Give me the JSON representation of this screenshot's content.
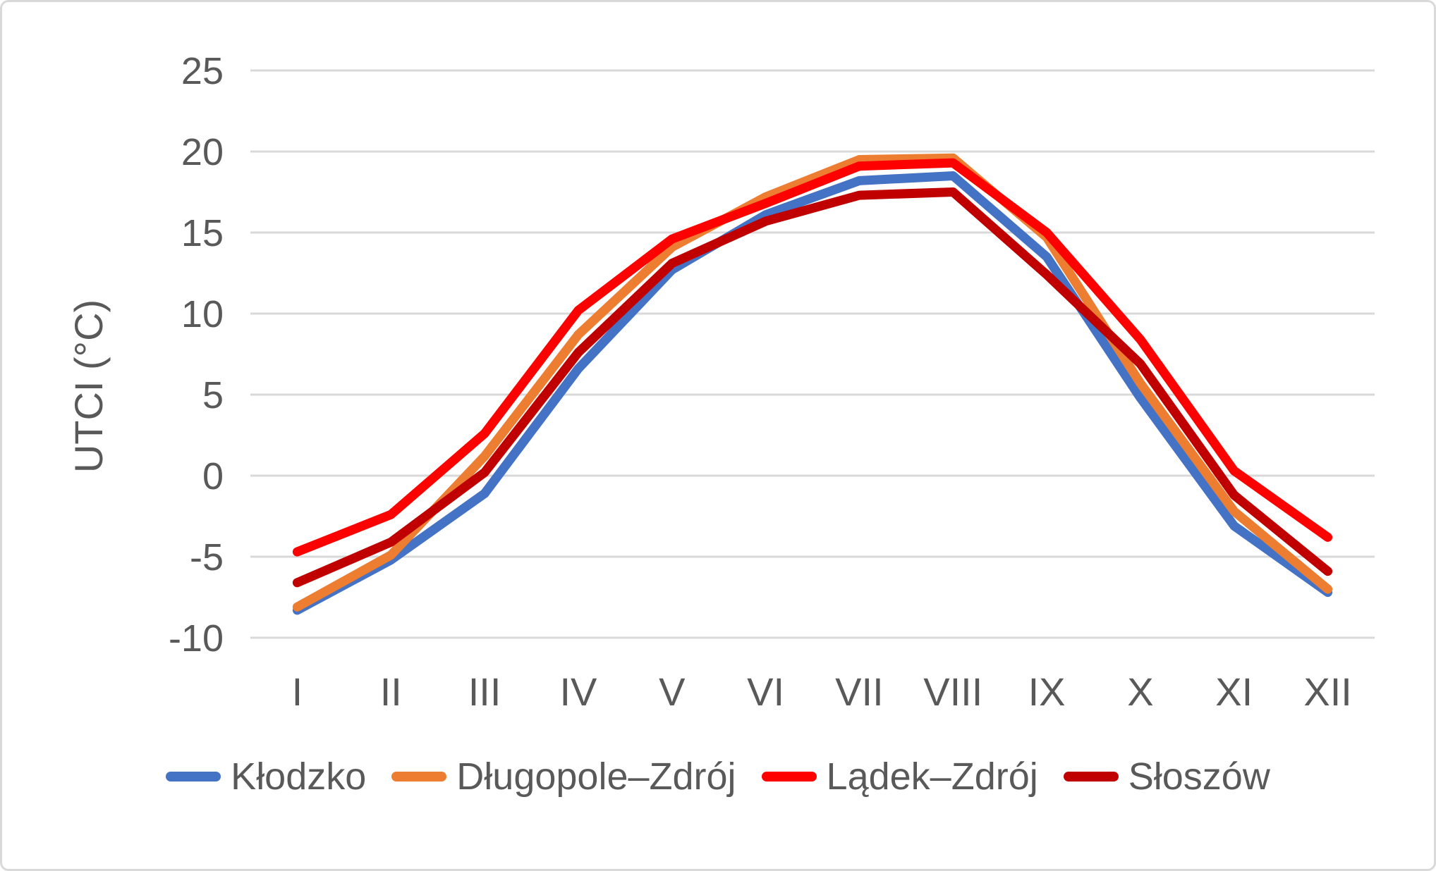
{
  "chart_data": {
    "type": "line",
    "title": "",
    "xlabel": "",
    "ylabel": "UTCI (°C)",
    "categories": [
      "I",
      "II",
      "III",
      "IV",
      "V",
      "VI",
      "VII",
      "VIII",
      "IX",
      "X",
      "XI",
      "XII"
    ],
    "series": [
      {
        "key": "klodzko",
        "name": "Kłodzko",
        "color": "#4472C4",
        "values": [
          -8.3,
          -5.2,
          -1.1,
          6.6,
          12.7,
          16.1,
          18.2,
          18.5,
          13.5,
          4.8,
          -3.1,
          -7.2
        ]
      },
      {
        "key": "dlugopole-zdroj",
        "name": "Długopole–Zdrój",
        "color": "#ED7D31",
        "values": [
          -8.1,
          -4.9,
          1.2,
          8.7,
          14.1,
          17.2,
          19.5,
          19.6,
          14.7,
          5.7,
          -2.2,
          -7.0
        ]
      },
      {
        "key": "ladek-zdroj",
        "name": "Lądek–Zdrój",
        "color": "#FF0000",
        "values": [
          -4.7,
          -2.4,
          2.6,
          10.2,
          14.6,
          16.8,
          19.1,
          19.3,
          15.0,
          8.4,
          0.3,
          -3.8
        ]
      },
      {
        "key": "sloszow",
        "name": "Słoszów",
        "color": "#C00000",
        "values": [
          -6.6,
          -4.1,
          0.2,
          7.6,
          13.1,
          15.7,
          17.3,
          17.5,
          12.4,
          6.9,
          -1.2,
          -5.9
        ]
      }
    ],
    "ylim": [
      -10,
      25
    ],
    "ytick_step": 5,
    "yticks": [
      25,
      20,
      15,
      10,
      5,
      0,
      -5,
      -10
    ],
    "grid": true,
    "legend_position": "bottom"
  },
  "styles": {
    "background": "#FFFFFF",
    "frame_border_color": "#D9D9D9",
    "grid_color": "#D9D9D9",
    "axis_text_color": "#595959",
    "legend_text_color": "#595959",
    "line_width": 13
  }
}
